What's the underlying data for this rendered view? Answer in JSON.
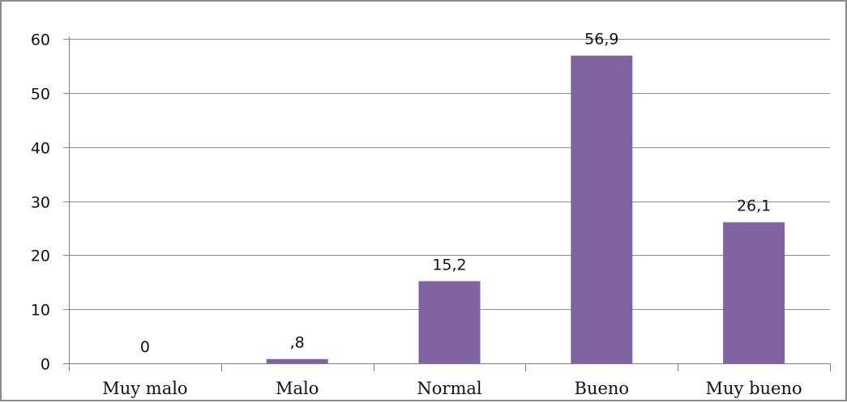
{
  "chart_data": {
    "type": "bar",
    "categories": [
      "Muy malo",
      "Malo",
      "Normal",
      "Bueno",
      "Muy bueno"
    ],
    "values": [
      0,
      0.8,
      15.2,
      56.9,
      26.1
    ],
    "data_labels": [
      "0",
      ",8",
      "15,2",
      "56,9",
      "26,1"
    ],
    "y_ticks": [
      "0",
      "10",
      "20",
      "30",
      "40",
      "50",
      "60"
    ],
    "ylim": [
      0,
      60
    ],
    "grid": true,
    "legend": "none",
    "bar_color": "#8064a2",
    "gridline_color": "#8c8c8c"
  }
}
